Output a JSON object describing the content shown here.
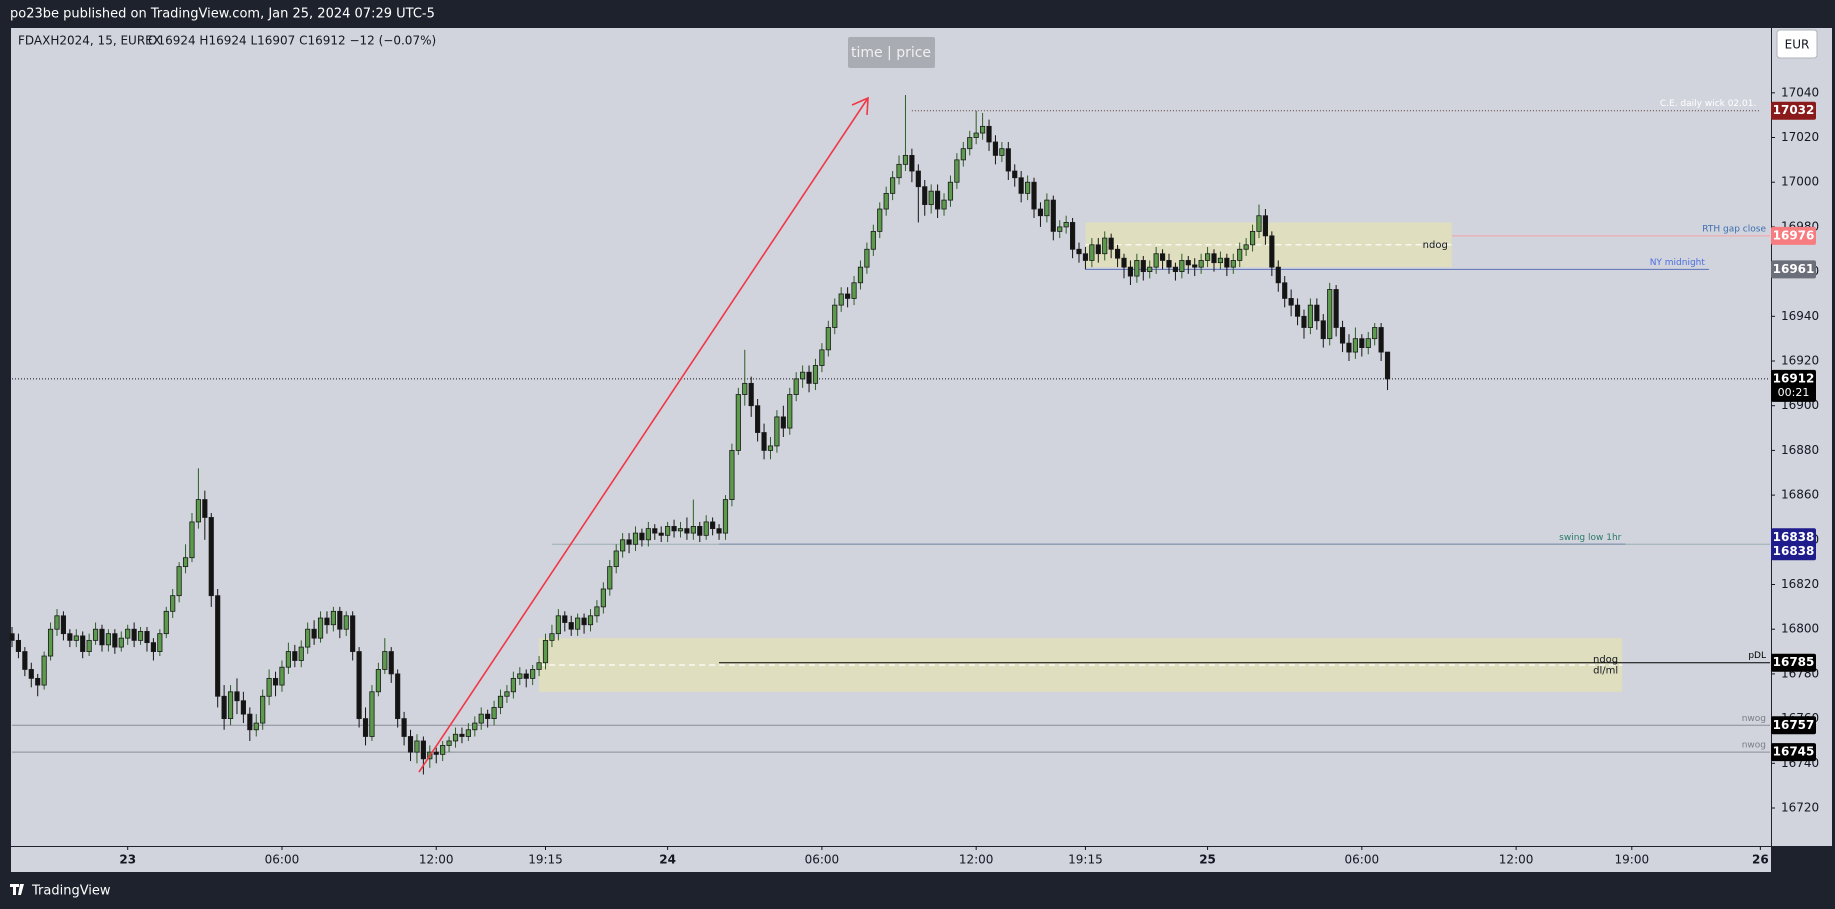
{
  "header": "po23be published on TradingView.com, Jan 25, 2024 07:29 UTC-5",
  "footer": "TradingView",
  "chart_data": {
    "type": "candlestick",
    "symbol": "FDAXH2024, 15, EUREX",
    "ohlc_text": "O16924  H16924  L16907  C16912  −12 (−0.07%)",
    "toolbar_button": "time | price",
    "currency": "EUR",
    "up_color": "#5c9a4c",
    "down_color": "#141414",
    "grid": false,
    "xlim": [
      0,
      273.5
    ],
    "xticks": [
      {
        "value": 18,
        "label": "23"
      },
      {
        "value": 42,
        "label": "06:00"
      },
      {
        "value": 66,
        "label": "12:00"
      },
      {
        "value": 83,
        "label": "19:15"
      },
      {
        "value": 102,
        "label": "24"
      },
      {
        "value": 126,
        "label": "06:00"
      },
      {
        "value": 150,
        "label": "12:00"
      },
      {
        "value": 167,
        "label": "19:15"
      },
      {
        "value": 186,
        "label": "25"
      },
      {
        "value": 210,
        "label": "06:00"
      },
      {
        "value": 234,
        "label": "12:00"
      },
      {
        "value": 252,
        "label": "19:00"
      },
      {
        "value": 272,
        "label": "26"
      }
    ],
    "ylim": [
      16703,
      17069
    ],
    "yticks": [
      16720,
      16740,
      16760,
      16780,
      16800,
      16820,
      16840,
      16860,
      16880,
      16900,
      16920,
      16940,
      16960,
      16980,
      17000,
      17020,
      17040
    ],
    "open": [
      16798,
      16795,
      16790,
      16782,
      16778,
      16775,
      16788,
      16800,
      16806,
      16798,
      16795,
      16797,
      16790,
      16795,
      16800,
      16793,
      16798,
      16792,
      16796,
      16800,
      16795,
      16799,
      16794,
      16790,
      16798,
      16808,
      16815,
      16828,
      16832,
      16848,
      16858,
      16850,
      16815,
      16770,
      16760,
      16772,
      16768,
      16762,
      16755,
      16758,
      16770,
      16778,
      16775,
      16783,
      16790,
      16786,
      16792,
      16800,
      16796,
      16805,
      16802,
      16808,
      16800,
      16806,
      16790,
      16760,
      16752,
      16772,
      16782,
      16790,
      16780,
      16760,
      16752,
      16745,
      16750,
      16742,
      16745,
      16744,
      16748,
      16750,
      16753,
      16752,
      16755,
      16758,
      16762,
      16760,
      16765,
      16770,
      16772,
      16778,
      16780,
      16778,
      16782,
      16785,
      16795,
      16798,
      16806,
      16803,
      16800,
      16805,
      16802,
      16806,
      16810,
      16818,
      16828,
      16835,
      16840,
      16838,
      16843,
      16840,
      16845,
      16843,
      16842,
      16846,
      16844,
      16845,
      16843,
      16846,
      16842,
      16848,
      16845,
      16843,
      16858,
      16880,
      16905,
      16910,
      16900,
      16888,
      16880,
      16882,
      16895,
      16890,
      16905,
      16912,
      16915,
      16910,
      16918,
      16925,
      16935,
      16945,
      16950,
      16948,
      16955,
      16962,
      16970,
      16978,
      16988,
      16995,
      17002,
      17008,
      17012,
      17005,
      16998,
      16990,
      16996,
      16988,
      16992,
      17000,
      17010,
      17015,
      17020,
      17022,
      17025,
      17018,
      17012,
      17015,
      17005,
      17002,
      16995,
      17000,
      16988,
      16985,
      16992,
      16978,
      16980,
      16982,
      16970,
      16968,
      16965,
      16972,
      16968,
      16975,
      16970,
      16966,
      16962,
      16958,
      16965,
      16960,
      16962,
      16968,
      16965,
      16962,
      16960,
      16965,
      16963,
      16962,
      16965,
      16968,
      16964,
      16966,
      16962,
      16965,
      16970,
      16972,
      16978,
      16985,
      16976,
      16962,
      16955,
      16948,
      16945,
      16940,
      16935,
      16945,
      16938,
      16930,
      16952,
      16935,
      16928,
      16924,
      16930,
      16926,
      16930,
      16935,
      16924
    ],
    "high": [
      16801,
      16798,
      16792,
      16785,
      16780,
      16790,
      16803,
      16809,
      16808,
      16800,
      16800,
      16799,
      16798,
      16803,
      16802,
      16800,
      16800,
      16799,
      16802,
      16803,
      16801,
      16801,
      16796,
      16800,
      16810,
      16818,
      16830,
      16838,
      16852,
      16872,
      16862,
      16852,
      16818,
      16775,
      16775,
      16778,
      16772,
      16765,
      16762,
      16773,
      16782,
      16781,
      16786,
      16794,
      16793,
      16795,
      16803,
      16804,
      16808,
      16808,
      16810,
      16810,
      16808,
      16808,
      16792,
      16765,
      16775,
      16785,
      16796,
      16792,
      16782,
      16763,
      16755,
      16753,
      16752,
      16748,
      16747,
      16750,
      16752,
      16756,
      16756,
      16758,
      16761,
      16765,
      16764,
      16768,
      16773,
      16775,
      16781,
      16783,
      16782,
      16784,
      16788,
      16798,
      16802,
      16809,
      16808,
      16806,
      16807,
      16807,
      16809,
      16813,
      16821,
      16831,
      16838,
      16843,
      16843,
      16846,
      16845,
      16848,
      16847,
      16846,
      16848,
      16849,
      16848,
      16850,
      16858,
      16848,
      16851,
      16850,
      16847,
      16860,
      16883,
      16908,
      16925,
      16913,
      16903,
      16892,
      16886,
      16898,
      16900,
      16908,
      16915,
      16918,
      16918,
      16921,
      16928,
      16938,
      16948,
      16953,
      16953,
      16958,
      16965,
      16973,
      16981,
      16991,
      16998,
      17005,
      17012,
      17039,
      17015,
      17008,
      17001,
      16999,
      16999,
      16995,
      17003,
      17013,
      17018,
      17023,
      17032,
      17031,
      17028,
      17021,
      17018,
      17018,
      17008,
      17005,
      17003,
      17002,
      16991,
      16995,
      16994,
      16983,
      16985,
      16984,
      16973,
      16971,
      16975,
      16975,
      16978,
      16977,
      16972,
      16968,
      16965,
      16968,
      16967,
      16965,
      16971,
      16970,
      16968,
      16964,
      16968,
      16967,
      16966,
      16968,
      16971,
      16970,
      16969,
      16968,
      16968,
      16973,
      16975,
      16981,
      16990,
      16988,
      16978,
      16965,
      16958,
      16952,
      16948,
      16943,
      16948,
      16948,
      16941,
      16955,
      16954,
      16938,
      16932,
      16935,
      16932,
      16933,
      16937,
      16937,
      16924
    ],
    "low": [
      16792,
      16787,
      16779,
      16774,
      16770,
      16773,
      16786,
      16797,
      16795,
      16792,
      16792,
      16787,
      16788,
      16793,
      16790,
      16790,
      16789,
      16790,
      16793,
      16792,
      16793,
      16790,
      16786,
      16788,
      16796,
      16805,
      16812,
      16825,
      16830,
      16845,
      16840,
      16810,
      16765,
      16755,
      16757,
      16762,
      16758,
      16750,
      16752,
      16755,
      16766,
      16770,
      16772,
      16780,
      16783,
      16783,
      16789,
      16793,
      16794,
      16798,
      16799,
      16796,
      16797,
      16786,
      16756,
      16748,
      16750,
      16770,
      16780,
      16776,
      16756,
      16748,
      16741,
      16740,
      16735,
      16738,
      16740,
      16741,
      16745,
      16747,
      16749,
      16750,
      16752,
      16755,
      16756,
      16757,
      16762,
      16767,
      16769,
      16775,
      16774,
      16775,
      16779,
      16782,
      16792,
      16795,
      16799,
      16797,
      16797,
      16798,
      16799,
      16803,
      16807,
      16815,
      16825,
      16832,
      16834,
      16835,
      16837,
      16837,
      16840,
      16839,
      16839,
      16841,
      16841,
      16840,
      16840,
      16839,
      16840,
      16842,
      16840,
      16840,
      16855,
      16878,
      16900,
      16895,
      16884,
      16876,
      16876,
      16879,
      16886,
      16887,
      16902,
      16908,
      16906,
      16907,
      16915,
      16922,
      16932,
      16942,
      16944,
      16945,
      16952,
      16959,
      16967,
      16975,
      16985,
      16992,
      16999,
      17005,
      17000,
      16982,
      16985,
      16986,
      16984,
      16985,
      16989,
      16997,
      17007,
      17012,
      17017,
      17019,
      17014,
      17008,
      17009,
      17001,
      16998,
      16991,
      16992,
      16984,
      16980,
      16982,
      16974,
      16975,
      16977,
      16966,
      16964,
      16961,
      16962,
      16964,
      16965,
      16966,
      16962,
      16957,
      16954,
      16955,
      16956,
      16957,
      16959,
      16961,
      16959,
      16956,
      16957,
      16959,
      16958,
      16959,
      16962,
      16960,
      16961,
      16958,
      16959,
      16962,
      16967,
      16969,
      16975,
      16972,
      16958,
      16951,
      16944,
      16940,
      16936,
      16930,
      16932,
      16934,
      16926,
      16927,
      16931,
      16924,
      16920,
      16921,
      16922,
      16923,
      16927,
      16920,
      16907
    ],
    "close": [
      16795,
      16790,
      16782,
      16778,
      16775,
      16788,
      16800,
      16806,
      16798,
      16795,
      16797,
      16790,
      16795,
      16800,
      16793,
      16798,
      16792,
      16796,
      16800,
      16795,
      16799,
      16794,
      16790,
      16798,
      16808,
      16815,
      16828,
      16832,
      16848,
      16858,
      16850,
      16815,
      16770,
      16760,
      16772,
      16768,
      16762,
      16755,
      16758,
      16770,
      16778,
      16775,
      16783,
      16790,
      16786,
      16792,
      16800,
      16796,
      16805,
      16802,
      16808,
      16800,
      16806,
      16790,
      16760,
      16752,
      16772,
      16782,
      16790,
      16780,
      16760,
      16752,
      16745,
      16750,
      16742,
      16745,
      16744,
      16748,
      16750,
      16753,
      16752,
      16755,
      16758,
      16762,
      16760,
      16765,
      16770,
      16772,
      16778,
      16780,
      16778,
      16782,
      16785,
      16795,
      16798,
      16806,
      16803,
      16800,
      16805,
      16802,
      16806,
      16810,
      16818,
      16828,
      16835,
      16840,
      16838,
      16843,
      16840,
      16845,
      16843,
      16842,
      16846,
      16844,
      16845,
      16843,
      16846,
      16842,
      16848,
      16845,
      16843,
      16858,
      16880,
      16905,
      16910,
      16900,
      16888,
      16880,
      16882,
      16895,
      16890,
      16905,
      16912,
      16915,
      16910,
      16918,
      16925,
      16935,
      16945,
      16950,
      16948,
      16955,
      16962,
      16970,
      16978,
      16988,
      16995,
      17002,
      17008,
      17012,
      17005,
      16998,
      16990,
      16996,
      16988,
      16992,
      17000,
      17010,
      17015,
      17020,
      17022,
      17025,
      17018,
      17012,
      17015,
      17005,
      17002,
      16995,
      17000,
      16988,
      16985,
      16992,
      16978,
      16980,
      16982,
      16970,
      16968,
      16965,
      16972,
      16968,
      16975,
      16970,
      16966,
      16962,
      16958,
      16965,
      16960,
      16962,
      16968,
      16965,
      16962,
      16960,
      16965,
      16963,
      16962,
      16965,
      16968,
      16964,
      16966,
      16962,
      16965,
      16970,
      16972,
      16978,
      16985,
      16976,
      16962,
      16955,
      16948,
      16945,
      16940,
      16935,
      16945,
      16938,
      16930,
      16952,
      16935,
      16928,
      16924,
      16930,
      16926,
      16930,
      16935,
      16924,
      16912
    ],
    "last_price": {
      "value": 16912,
      "countdown": "00:21",
      "color": "#000000"
    },
    "levels": [
      {
        "name": "C.E. daily wick 02.01.",
        "value": 17032,
        "color": "#8b1a1a",
        "line_color": "#5a3a3a",
        "text_color": "#ffffff",
        "style": "dotted"
      },
      {
        "name": "RTH gap close",
        "value": 16976,
        "color": "#f77c80",
        "line_color": "#f4a4a8",
        "text_color": "#3d6fb0",
        "style": "solid"
      },
      {
        "name": "NY midnight",
        "value": 16961,
        "color": "#6b6f7a",
        "line_color": "#5a6fb8",
        "text_color": "#4a6fe0",
        "style": "solid"
      },
      {
        "name": "swing low 1hr",
        "value": 16838,
        "color": "#1f1d8c",
        "line_color": "#1f1d8c",
        "text_color": "#2a7a6a",
        "style": "solid"
      },
      {
        "value": 16838,
        "color": "#1f1d8c",
        "line_color": "#9aaeb2",
        "style": "solid"
      },
      {
        "name": "pDL",
        "value": 16785,
        "color": "#000000",
        "line_color": "#000000",
        "text_color": "#000000",
        "style": "solid"
      },
      {
        "name": "nwog",
        "value": 16757,
        "color": "#000000",
        "line_color": "#8a8d96",
        "text_color": "#7a7d86",
        "style": "solid"
      },
      {
        "name": "nwog",
        "value": 16745,
        "color": "#000000",
        "line_color": "#8a8d96",
        "text_color": "#7a7d86",
        "style": "solid"
      }
    ],
    "zones": [
      {
        "labels": [
          "ndog"
        ],
        "top": 16982,
        "bottom": 16962,
        "mid": 16972,
        "color": "#e2dfb8"
      },
      {
        "labels": [
          "ndog",
          "dl/ml"
        ],
        "top": 16796,
        "bottom": 16772,
        "mid": 16784,
        "color": "#e2dfb8"
      }
    ]
  }
}
